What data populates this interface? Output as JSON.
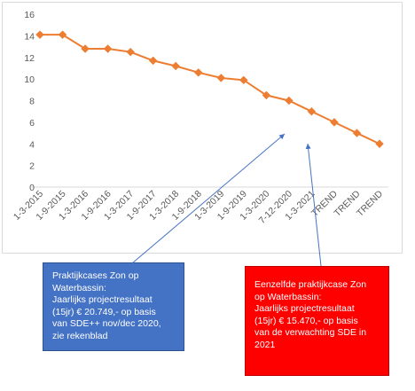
{
  "chart_data": {
    "type": "line",
    "categories": [
      "1-3-2015",
      "1-9-2015",
      "1-3-2016",
      "1-9-2016",
      "1-3-2017",
      "1-9-2017",
      "1-3-2018",
      "1-9-2018",
      "1-3-2019",
      "1-9-2019",
      "1-3-2020",
      "7-12-2020",
      "1-3-2021",
      "TREND",
      "TREND",
      "TREND"
    ],
    "series": [
      {
        "values": [
          14.1,
          14.1,
          12.8,
          12.8,
          12.5,
          11.7,
          11.2,
          10.6,
          10.1,
          9.9,
          8.5,
          8.0,
          7.0,
          6.0,
          5.0,
          4.0
        ]
      }
    ],
    "ylim": [
      0,
      16
    ],
    "yticks": [
      0,
      2,
      4,
      6,
      8,
      10,
      12,
      14,
      16
    ],
    "grid": false,
    "line_color": "#ed7d31",
    "marker": "diamond"
  },
  "annotations": {
    "blue_box": {
      "text": "Praktijkcases Zon op\nWaterbassin:\nJaarlijks projectresultaat\n(15jr)  € 20.749,- op basis\nvan SDE++ nov/dec 2020,\nzie rekenblad",
      "color": "#4472c4"
    },
    "red_box": {
      "text": "Eenzelfde praktijkcase Zon\nop Waterbassin:\nJaarlijks projectresultaat\n(15jr)   € 15.470,- op basis\nvan de verwachting SDE in\n2021",
      "color": "#ff0000"
    }
  }
}
